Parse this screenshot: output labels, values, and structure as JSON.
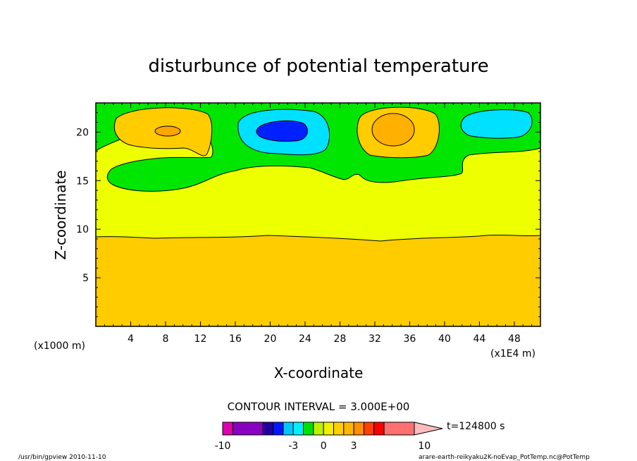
{
  "chart_data": {
    "type": "contour",
    "title": "disturbunce of potential temperature",
    "xlabel": "X-coordinate",
    "ylabel": "Z-coordinate",
    "x_unit_left": "(x1000 m)",
    "x_unit_right": "(x1E4 m)",
    "xlim": [
      0,
      51
    ],
    "ylim": [
      0,
      23
    ],
    "xticks": [
      "4",
      "8",
      "12",
      "16",
      "20",
      "24",
      "28",
      "32",
      "36",
      "40",
      "44",
      "48"
    ],
    "yticks": [
      "5",
      "10",
      "15",
      "20"
    ],
    "contour_interval": "CONTOUR INTERVAL = 3.000E+00",
    "time_label": "t=124800 s",
    "levels": [
      -10,
      -9,
      -6,
      -5,
      -4,
      -3,
      -2,
      -1,
      0,
      1,
      2,
      3,
      4,
      5,
      6,
      9,
      10
    ],
    "colorbar_labels": [
      "-10",
      "-3",
      "0",
      "3",
      "10"
    ],
    "colorbar_colors": [
      "#e000b0",
      "#8a00c0",
      "#2000a0",
      "#0018ff",
      "#00c8ff",
      "#00f0ff",
      "#00e000",
      "#c0f000",
      "#f0f000",
      "#ffd000",
      "#ffb800",
      "#ff9000",
      "#ff4000",
      "#ff0000",
      "#ff7070",
      "#ffbcbc"
    ],
    "field_colors": {
      "warm_orange": "#ffcc00",
      "stable_yellow": "#eeff00",
      "neutral_green": "#00e600",
      "warm_core": "#ffb000",
      "cold_cyan": "#00e0ff",
      "cold_core": "#0020ff"
    },
    "features": [
      {
        "kind": "warm",
        "x": 8.5,
        "z": 20.2
      },
      {
        "kind": "cold",
        "x": 22.0,
        "z": 20.0
      },
      {
        "kind": "warm",
        "x": 34.0,
        "z": 20.2
      },
      {
        "kind": "cold",
        "x": 46.5,
        "z": 20.5
      }
    ]
  },
  "footer": {
    "left": "/usr/bin/gpview   2010-11-10",
    "right": "arare-earth-reikyaku2K-noEvap_PotTemp.nc@PotTemp"
  }
}
